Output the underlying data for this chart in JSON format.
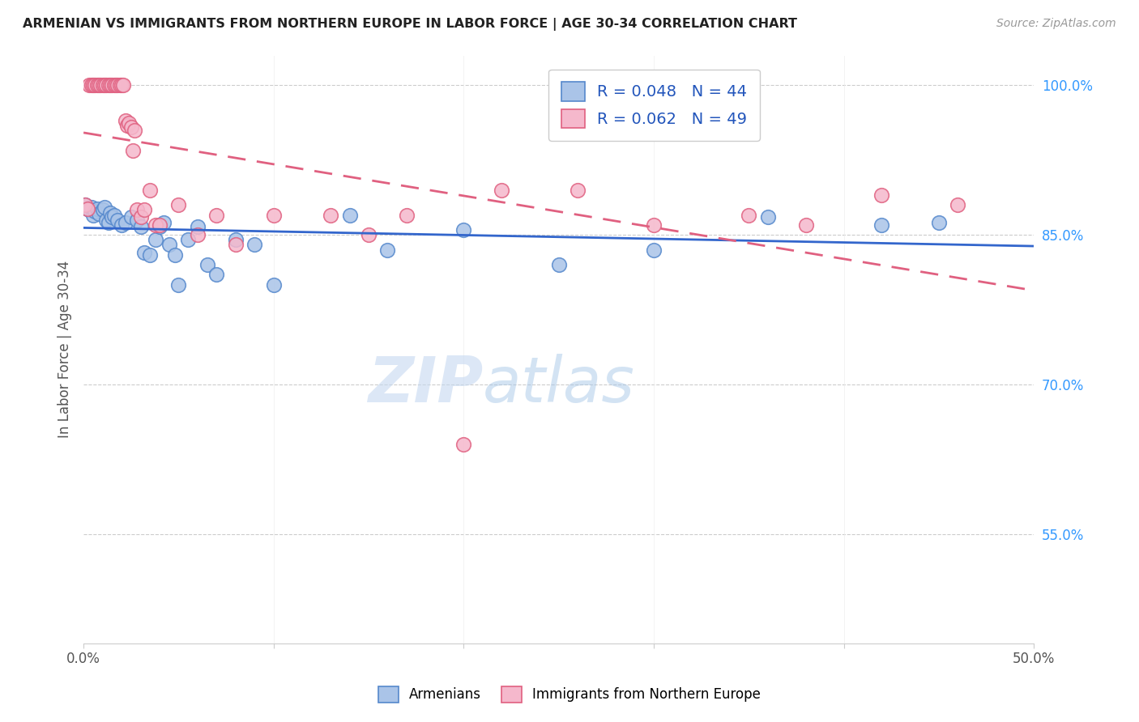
{
  "title": "ARMENIAN VS IMMIGRANTS FROM NORTHERN EUROPE IN LABOR FORCE | AGE 30-34 CORRELATION CHART",
  "source": "Source: ZipAtlas.com",
  "ylabel": "In Labor Force | Age 30-34",
  "xlim": [
    0.0,
    0.5
  ],
  "ylim": [
    0.44,
    1.03
  ],
  "xtick_vals": [
    0.0,
    0.1,
    0.2,
    0.3,
    0.4,
    0.5
  ],
  "xtick_labels": [
    "0.0%",
    "",
    "",
    "",
    "",
    "50.0%"
  ],
  "ytick_right_labels": [
    "100.0%",
    "85.0%",
    "70.0%",
    "55.0%"
  ],
  "ytick_right_values": [
    1.0,
    0.85,
    0.7,
    0.55
  ],
  "armenian_R": 0.048,
  "armenian_N": 44,
  "northern_europe_R": 0.062,
  "northern_europe_N": 49,
  "armenian_color": "#aac4e8",
  "northern_europe_color": "#f5b8cc",
  "armenian_edge_color": "#5588cc",
  "northern_europe_edge_color": "#e06080",
  "armenian_line_color": "#3366cc",
  "northern_europe_line_color": "#e06080",
  "legend_text_color": "#2255bb",
  "watermark_color": "#dce8f5",
  "background_color": "#ffffff",
  "armenian_x": [
    0.001,
    0.002,
    0.003,
    0.004,
    0.005,
    0.006,
    0.007,
    0.008,
    0.01,
    0.011,
    0.012,
    0.013,
    0.014,
    0.015,
    0.016,
    0.018,
    0.02,
    0.022,
    0.025,
    0.028,
    0.03,
    0.032,
    0.035,
    0.038,
    0.04,
    0.042,
    0.045,
    0.048,
    0.05,
    0.055,
    0.06,
    0.065,
    0.07,
    0.08,
    0.09,
    0.1,
    0.14,
    0.16,
    0.2,
    0.25,
    0.3,
    0.36,
    0.42,
    0.45
  ],
  "armenian_y": [
    0.88,
    0.876,
    0.875,
    0.878,
    0.87,
    0.874,
    0.876,
    0.871,
    0.875,
    0.878,
    0.865,
    0.862,
    0.872,
    0.868,
    0.87,
    0.865,
    0.86,
    0.862,
    0.868,
    0.865,
    0.858,
    0.832,
    0.83,
    0.845,
    0.858,
    0.862,
    0.84,
    0.83,
    0.8,
    0.845,
    0.858,
    0.82,
    0.81,
    0.845,
    0.84,
    0.8,
    0.87,
    0.835,
    0.855,
    0.82,
    0.835,
    0.868,
    0.86,
    0.862
  ],
  "northern_europe_x": [
    0.001,
    0.002,
    0.003,
    0.004,
    0.005,
    0.006,
    0.007,
    0.008,
    0.009,
    0.01,
    0.011,
    0.012,
    0.013,
    0.014,
    0.015,
    0.016,
    0.017,
    0.018,
    0.019,
    0.02,
    0.021,
    0.022,
    0.023,
    0.024,
    0.025,
    0.026,
    0.027,
    0.028,
    0.03,
    0.032,
    0.035,
    0.038,
    0.04,
    0.05,
    0.06,
    0.07,
    0.08,
    0.1,
    0.13,
    0.15,
    0.17,
    0.2,
    0.22,
    0.26,
    0.3,
    0.35,
    0.38,
    0.42,
    0.46
  ],
  "northern_europe_y": [
    0.88,
    0.876,
    1.0,
    1.0,
    1.0,
    1.0,
    1.0,
    1.0,
    1.0,
    1.0,
    1.0,
    1.0,
    1.0,
    1.0,
    1.0,
    1.0,
    1.0,
    1.0,
    1.0,
    1.0,
    1.0,
    0.965,
    0.96,
    0.962,
    0.958,
    0.935,
    0.955,
    0.875,
    0.868,
    0.875,
    0.895,
    0.86,
    0.86,
    0.88,
    0.85,
    0.87,
    0.84,
    0.87,
    0.87,
    0.85,
    0.87,
    0.64,
    0.895,
    0.895,
    0.86,
    0.87,
    0.86,
    0.89,
    0.88
  ]
}
